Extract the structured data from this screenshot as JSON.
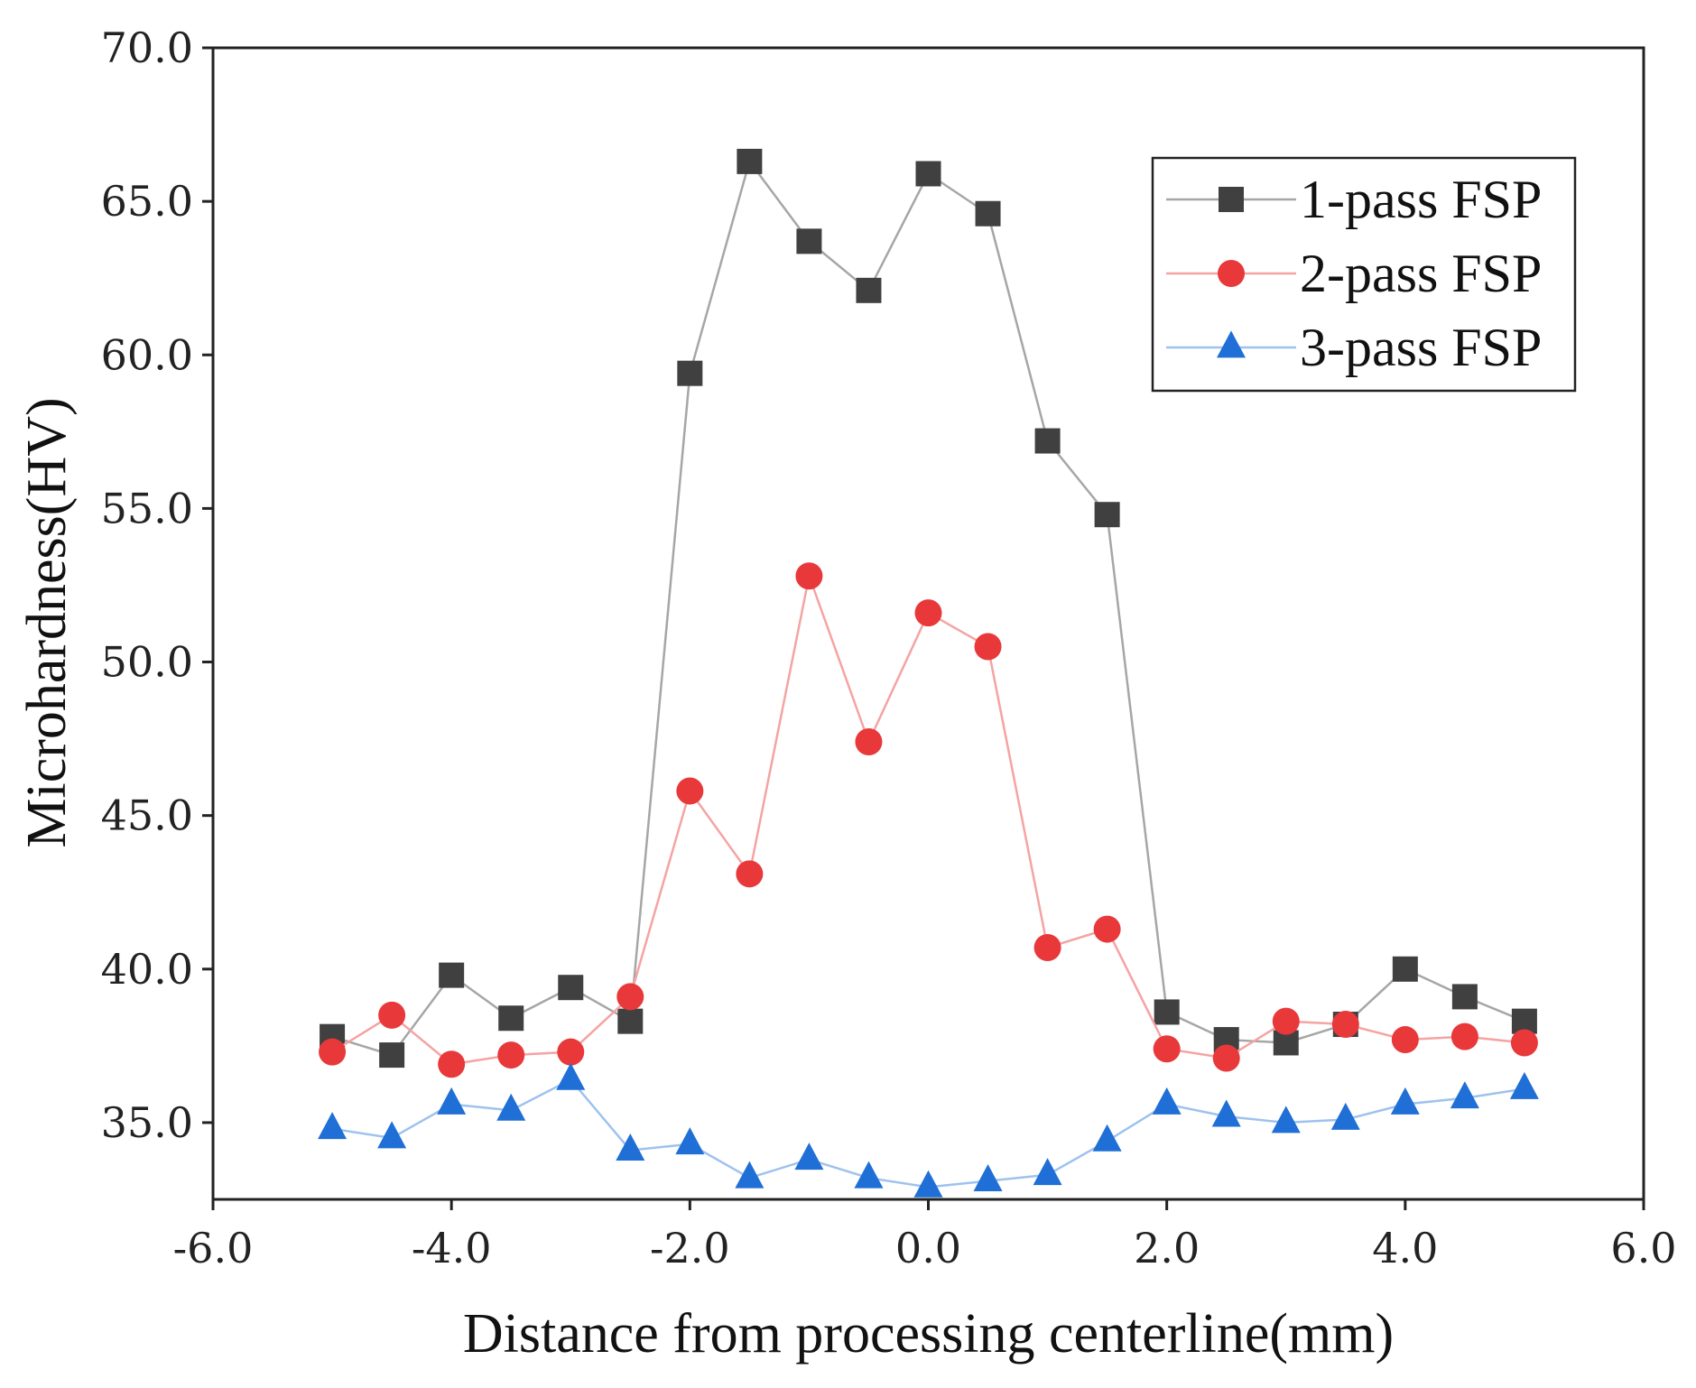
{
  "chart_data": {
    "type": "line",
    "title": "",
    "xlabel": "Distance from processing centerline(mm)",
    "ylabel": "Microhardness(HV)",
    "xlim": [
      -6.0,
      6.0
    ],
    "ylim": [
      32.5,
      70.0
    ],
    "xticks": [
      -6.0,
      -4.0,
      -2.0,
      0.0,
      2.0,
      4.0,
      6.0
    ],
    "yticks": [
      35.0,
      40.0,
      45.0,
      50.0,
      55.0,
      60.0,
      65.0,
      70.0
    ],
    "xtick_labels": [
      "-6.0",
      "-4.0",
      "-2.0",
      "0.0",
      "2.0",
      "4.0",
      "6.0"
    ],
    "ytick_labels": [
      "35.0",
      "40.0",
      "45.0",
      "50.0",
      "55.0",
      "60.0",
      "65.0",
      "70.0"
    ],
    "grid": false,
    "legend_position": "top-right",
    "x": [
      -5.0,
      -4.5,
      -4.0,
      -3.5,
      -3.0,
      -2.5,
      -2.0,
      -1.5,
      -1.0,
      -0.5,
      0.0,
      0.5,
      1.0,
      1.5,
      2.0,
      2.5,
      3.0,
      3.5,
      4.0,
      4.5,
      5.0
    ],
    "series": [
      {
        "name": "1-pass FSP",
        "marker": "square",
        "marker_color": "#404040",
        "line_color": "#a6a6a6",
        "values": [
          37.8,
          37.2,
          39.8,
          38.4,
          39.4,
          38.3,
          59.4,
          66.3,
          63.7,
          62.1,
          65.9,
          64.6,
          57.2,
          54.8,
          38.6,
          37.7,
          37.6,
          38.2,
          40.0,
          39.1,
          38.3
        ]
      },
      {
        "name": "2-pass FSP",
        "marker": "circle",
        "marker_color": "#e8383a",
        "line_color": "#f5a3a3",
        "values": [
          37.3,
          38.5,
          36.9,
          37.2,
          37.3,
          39.1,
          45.8,
          43.1,
          52.8,
          47.4,
          51.6,
          50.5,
          40.7,
          41.3,
          37.4,
          37.1,
          38.3,
          38.2,
          37.7,
          37.8,
          37.6
        ]
      },
      {
        "name": "3-pass FSP",
        "marker": "triangle",
        "marker_color": "#1f6fd6",
        "line_color": "#9ec2ee",
        "values": [
          34.8,
          34.5,
          35.6,
          35.4,
          36.4,
          34.1,
          34.3,
          33.2,
          33.8,
          33.2,
          32.9,
          33.1,
          33.3,
          34.4,
          35.6,
          35.2,
          35.0,
          35.1,
          35.6,
          35.8,
          36.1
        ]
      }
    ]
  }
}
